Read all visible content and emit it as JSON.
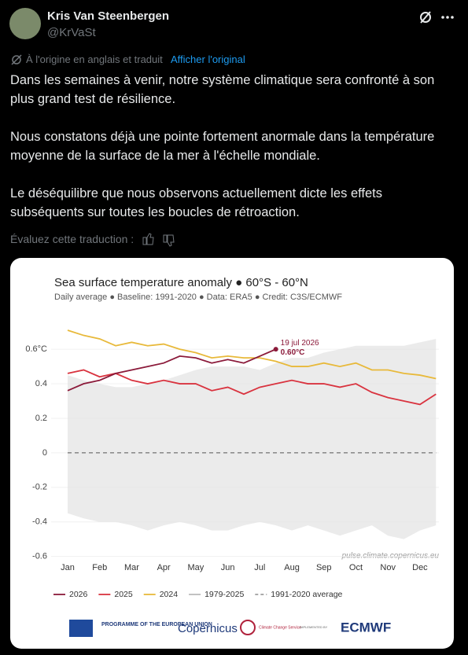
{
  "tweet": {
    "name": "Kris Van Steenbergen",
    "handle": "@KrVaSt",
    "translation_note": "À l'origine en anglais et traduit",
    "show_original": "Afficher l'original",
    "paragraphs": [
      "Dans les semaines à venir, notre système climatique sera confronté à son plus grand test de résilience.",
      "Nous constatons déjà une pointe fortement anormale dans la température moyenne de la surface de la mer à l'échelle mondiale.",
      "Le déséquilibre que nous observons actuellement dicte les effets subséquents sur toutes les boucles de rétroaction."
    ],
    "rate": "Évaluez cette traduction :"
  },
  "chart_data": {
    "type": "line",
    "title": "Sea surface temperature anomaly ● 60°S - 60°N",
    "subtitle": "Daily average ● Baseline: 1991-2020 ● Data: ERA5 ● Credit: C3S/ECMWF",
    "categories": [
      "Jan",
      null,
      "Feb",
      null,
      "Mar",
      null,
      "Apr",
      null,
      "May",
      null,
      "Jun",
      null,
      "Jul",
      null,
      "Aug",
      null,
      "Sep",
      null,
      "Oct",
      null,
      "Nov",
      null,
      "Dec",
      null
    ],
    "series": [
      {
        "name": "2026",
        "color": "#8b1a3a",
        "values": [
          0.36,
          0.4,
          0.42,
          0.46,
          0.48,
          0.5,
          0.52,
          0.56,
          0.55,
          0.52,
          0.54,
          0.52,
          0.56,
          0.6,
          null,
          null,
          null,
          null,
          null,
          null,
          null,
          null,
          null,
          null
        ],
        "value_labels": [
          null,
          null,
          null,
          null,
          null,
          null,
          null,
          null,
          null,
          null,
          null,
          null,
          null,
          "0.60°C"
        ]
      },
      {
        "name": "2025",
        "color": "#d9333f",
        "values": [
          0.46,
          0.48,
          0.44,
          0.46,
          0.42,
          0.4,
          0.42,
          0.4,
          0.4,
          0.36,
          0.38,
          0.34,
          0.38,
          0.4,
          0.42,
          0.4,
          0.4,
          0.38,
          0.4,
          0.35,
          0.32,
          0.3,
          0.28,
          0.34
        ]
      },
      {
        "name": "2024",
        "color": "#e8b93a",
        "values": [
          0.71,
          0.68,
          0.66,
          0.62,
          0.64,
          0.62,
          0.63,
          0.6,
          0.58,
          0.55,
          0.56,
          0.55,
          0.55,
          0.53,
          0.5,
          0.5,
          0.52,
          0.5,
          0.52,
          0.48,
          0.48,
          0.46,
          0.45,
          0.43
        ]
      },
      {
        "name": "1991-2020 average",
        "color": "#555555",
        "dashed": true,
        "values": [
          0,
          0,
          0,
          0,
          0,
          0,
          0,
          0,
          0,
          0,
          0,
          0,
          0,
          0,
          0,
          0,
          0,
          0,
          0,
          0,
          0,
          0,
          0,
          0
        ]
      }
    ],
    "range": {
      "name": "1979-2025",
      "color": "#e2e2e2",
      "low": [
        -0.35,
        -0.38,
        -0.4,
        -0.4,
        -0.42,
        -0.45,
        -0.42,
        -0.4,
        -0.42,
        -0.45,
        -0.45,
        -0.42,
        -0.4,
        -0.42,
        -0.45,
        -0.42,
        -0.45,
        -0.48,
        -0.45,
        -0.42,
        -0.48,
        -0.5,
        -0.45,
        -0.42
      ],
      "high": [
        0.45,
        0.42,
        0.4,
        0.38,
        0.38,
        0.4,
        0.42,
        0.45,
        0.48,
        0.5,
        0.5,
        0.5,
        0.48,
        0.52,
        0.55,
        0.55,
        0.58,
        0.6,
        0.62,
        0.62,
        0.62,
        0.62,
        0.64,
        0.66
      ]
    },
    "annotation": "19 jul 2026",
    "source": "pulse.climate.copernicus.eu",
    "ylim": [
      -0.62,
      0.76
    ],
    "yticks": [
      -0.6,
      -0.4,
      -0.2,
      0,
      0.2,
      0.4,
      {
        "value": 0.6,
        "label": "0.6°C"
      }
    ],
    "grid": true,
    "logos": [
      "PROGRAMME OF THE EUROPEAN UNION",
      "Copernicus",
      "Climate Change Service",
      "IMPLEMENTED BY",
      "ECMWF"
    ]
  }
}
